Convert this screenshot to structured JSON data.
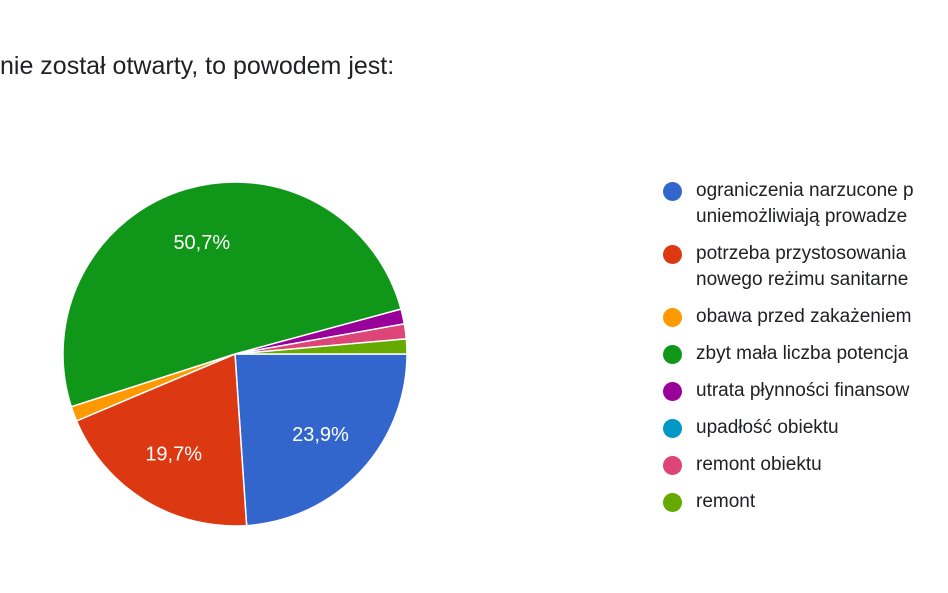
{
  "title": "nie został otwarty, to powodem jest:",
  "chart_data": {
    "type": "pie",
    "slices": [
      {
        "label": "ograniczenia narzucone p\nuniemożliwiają prowadze",
        "value": 23.9,
        "color": "#3366cc",
        "show_label": true,
        "label_text": "23,9%"
      },
      {
        "label": "potrzeba przystosowania\nnowego reżimu sanitarne",
        "value": 19.7,
        "color": "#dc3912",
        "show_label": true,
        "label_text": "19,7%"
      },
      {
        "label": "obawa przed zakażeniem",
        "value": 1.4,
        "color": "#ff9900",
        "show_label": false,
        "label_text": ""
      },
      {
        "label": "zbyt mała liczba potencja",
        "value": 50.7,
        "color": "#109618",
        "show_label": true,
        "label_text": "50,7%"
      },
      {
        "label": "utrata płynności finansow",
        "value": 1.4,
        "color": "#990099",
        "show_label": false,
        "label_text": ""
      },
      {
        "label": "upadłość obiektu",
        "value": 0.0,
        "color": "#0099c6",
        "show_label": false,
        "label_text": ""
      },
      {
        "label": "remont obiektu",
        "value": 1.4,
        "color": "#dd4477",
        "show_label": false,
        "label_text": ""
      },
      {
        "label": "remont",
        "value": 1.4,
        "color": "#66aa00",
        "show_label": false,
        "label_text": ""
      }
    ]
  }
}
